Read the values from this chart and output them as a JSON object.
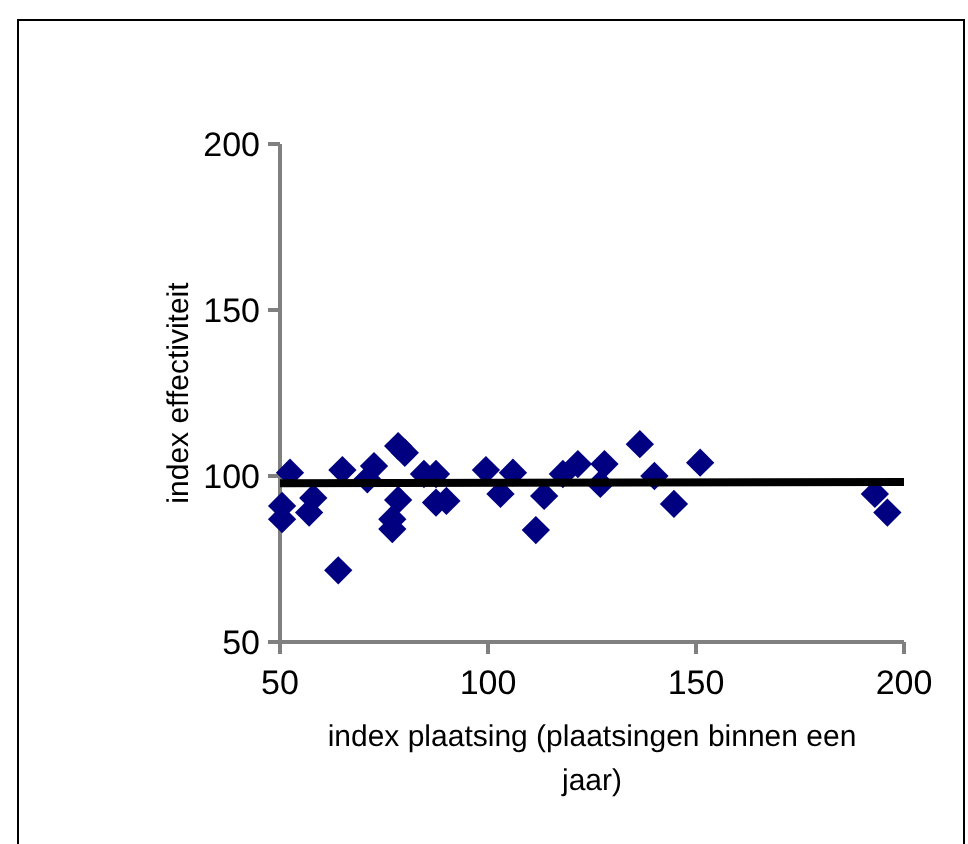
{
  "chart_data": {
    "type": "scatter",
    "xlabel": "index plaatsing (plaatsingen binnen een jaar)",
    "ylabel": "index effectiviteit",
    "xlim": [
      50,
      200
    ],
    "ylim": [
      50,
      200
    ],
    "xticks": [
      50,
      100,
      150,
      200
    ],
    "yticks": [
      50,
      100,
      150,
      200
    ],
    "grid": false,
    "series": [
      {
        "color": "#000080",
        "marker": "diamond",
        "x": [
          50.5,
          50.5,
          52.4,
          58,
          57,
          64,
          65,
          72.6,
          71,
          78.4,
          80,
          78.4,
          77,
          77,
          84.6,
          87.5,
          87.5,
          90,
          99.5,
          103,
          106,
          111.5,
          113.5,
          118,
          121.6,
          128,
          127,
          136.5,
          140,
          144.7,
          151,
          193,
          196
        ],
        "values": [
          91,
          87,
          101,
          93.4,
          89,
          71.6,
          101.8,
          103,
          99,
          109,
          107,
          92.8,
          84,
          87,
          100.6,
          100.6,
          92,
          92.5,
          101.8,
          94.6,
          101,
          83.7,
          94,
          100.6,
          103.6,
          103.6,
          97.6,
          109.6,
          100,
          91.6,
          104,
          94.6,
          89
        ]
      },
      {
        "type": "line",
        "color": "#000000",
        "line_style": "solid",
        "x": [
          50,
          200
        ],
        "values": [
          97.8,
          98.2
        ]
      }
    ]
  }
}
